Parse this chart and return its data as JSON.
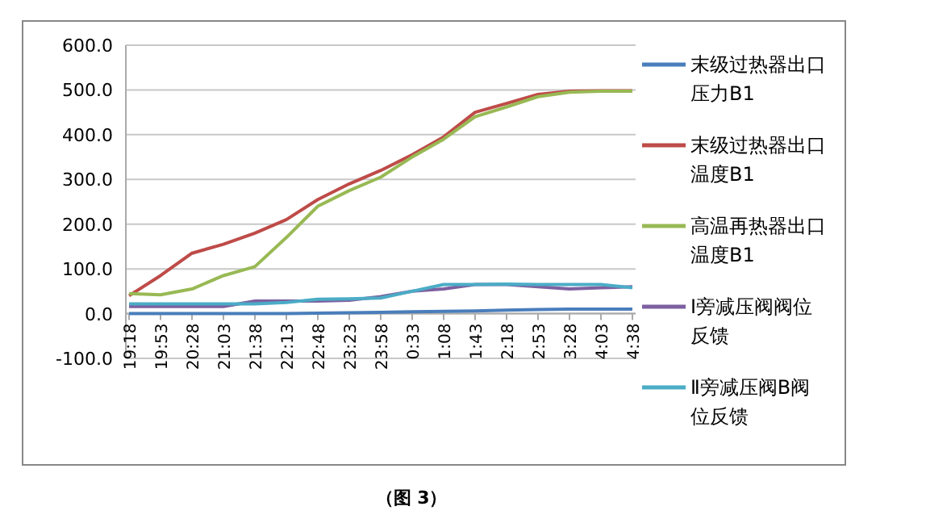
{
  "chart_data": {
    "type": "line",
    "categories": [
      "19:18",
      "19:53",
      "20:28",
      "21:03",
      "21:38",
      "22:13",
      "22:48",
      "23:23",
      "23:58",
      "0:33",
      "1:08",
      "1:43",
      "2:18",
      "2:53",
      "3:28",
      "4:03",
      "4:38"
    ],
    "series": [
      {
        "name": "末级过热器出口压力B1",
        "color": "#4a7ebb",
        "values": [
          0,
          0,
          0,
          0,
          0,
          0,
          1,
          2,
          3,
          4,
          5,
          6,
          8,
          9,
          10,
          10,
          10
        ]
      },
      {
        "name": "末级过热器出口温度B1",
        "color": "#be4b48",
        "values": [
          40,
          85,
          135,
          155,
          180,
          210,
          255,
          290,
          320,
          355,
          395,
          450,
          470,
          490,
          497,
          498,
          498
        ]
      },
      {
        "name": "高温再热器出口温度B1",
        "color": "#98b954",
        "values": [
          45,
          42,
          55,
          85,
          105,
          170,
          240,
          275,
          305,
          350,
          390,
          440,
          462,
          485,
          495,
          497,
          497
        ]
      },
      {
        "name": "Ⅰ旁减压阀阀位反馈",
        "color": "#7d60a0",
        "values": [
          16,
          16,
          16,
          16,
          28,
          28,
          28,
          30,
          38,
          50,
          55,
          65,
          65,
          60,
          55,
          58,
          60
        ]
      },
      {
        "name": "Ⅱ旁减压阀B阀位反馈",
        "color": "#4bacc6",
        "values": [
          22,
          22,
          22,
          22,
          22,
          25,
          32,
          33,
          35,
          50,
          65,
          65,
          66,
          65,
          65,
          65,
          58
        ]
      }
    ],
    "ylim": [
      -100,
      600
    ],
    "yticks": [
      {
        "value": -100,
        "label": "-100.0"
      },
      {
        "value": 0,
        "label": "0.0"
      },
      {
        "value": 100,
        "label": "100.0"
      },
      {
        "value": 200,
        "label": "200.0"
      },
      {
        "value": 300,
        "label": "300.0"
      },
      {
        "value": 400,
        "label": "400.0"
      },
      {
        "value": 500,
        "label": "500.0"
      },
      {
        "value": 600,
        "label": "600.0"
      }
    ],
    "grid": "y",
    "legend": "right",
    "annotations": [
      "（图 3）"
    ]
  }
}
